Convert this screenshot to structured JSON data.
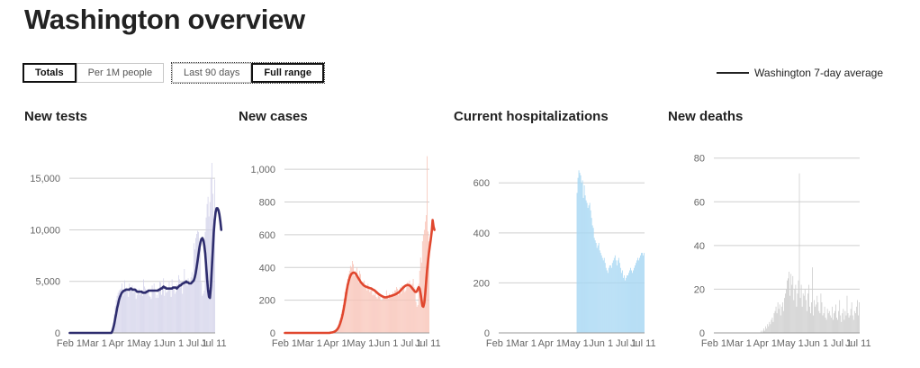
{
  "page_title": "Washington overview",
  "metric_toggle": {
    "options": [
      "Totals",
      "Per 1M people"
    ],
    "selected": "Totals"
  },
  "range_toggle": {
    "options": [
      "Last 90 days",
      "Full range"
    ],
    "selected": "Full range"
  },
  "legend": {
    "label": "Washington 7-day average",
    "color": "#222222"
  },
  "x_tick_labels": [
    "Feb 1",
    "Mar 1",
    "Apr 1",
    "May 1",
    "Jun 1",
    "Jul 1",
    "Jul 11"
  ],
  "chart_data": [
    {
      "type": "bar",
      "title": "New tests",
      "bar_color": "#d4d3ea",
      "line_color": "#2e2d6e",
      "ylim": [
        0,
        16500
      ],
      "yticks": [
        0,
        5000,
        10000,
        15000
      ],
      "ytick_labels": [
        "0",
        "5,000",
        "10,000",
        "15,000"
      ],
      "daily_approx": [
        0,
        0,
        0,
        0,
        0,
        0,
        0,
        0,
        0,
        0,
        0,
        0,
        0,
        0,
        0,
        0,
        0,
        0,
        0,
        0,
        0,
        0,
        0,
        0,
        0,
        0,
        0,
        0,
        0,
        0,
        0,
        0,
        0,
        0,
        0,
        0,
        0,
        0,
        0,
        0,
        0,
        0,
        0,
        0,
        0,
        500,
        1000,
        1800,
        2600,
        3200,
        3600,
        3900,
        4100,
        4200,
        4300,
        4800,
        3600,
        3900,
        5100,
        4200,
        4400,
        4000,
        3500,
        4800,
        4300,
        4200,
        4600,
        3900,
        4400,
        4100,
        3300,
        3700,
        4000,
        4300,
        3700,
        4100,
        3900,
        3600,
        5200,
        4500,
        4300,
        4100,
        3900,
        4200,
        3600,
        3500,
        3300,
        4600,
        4000,
        4800,
        3900,
        3400,
        3700,
        3400,
        4100,
        5000,
        4900,
        3700,
        4500,
        5300,
        3600,
        4500,
        3900,
        4000,
        4300,
        5000,
        4300,
        3500,
        5200,
        4500,
        4400,
        3800,
        4000,
        4700,
        4600,
        5600,
        5200,
        5000,
        4500,
        3800,
        4700,
        6200,
        4800,
        5000,
        4600,
        5300,
        4800,
        4700,
        5400,
        5900,
        5200,
        8700,
        8100,
        9200,
        9600,
        9900,
        9800,
        8400,
        8200,
        4900,
        3600,
        3800,
        4100,
        9800,
        11200,
        12500,
        13200,
        11300,
        12700,
        15000,
        16500,
        13500,
        11100,
        14900
      ],
      "avg_approx": [
        0,
        0,
        0,
        0,
        0,
        0,
        0,
        0,
        0,
        0,
        0,
        0,
        0,
        0,
        0,
        0,
        0,
        0,
        0,
        0,
        0,
        0,
        0,
        0,
        0,
        0,
        0,
        0,
        0,
        0,
        0,
        0,
        0,
        0,
        0,
        0,
        0,
        0,
        0,
        0,
        0,
        0,
        0,
        0,
        0,
        200,
        500,
        900,
        1400,
        1900,
        2400,
        2800,
        3200,
        3500,
        3700,
        3900,
        4000,
        4100,
        4100,
        4200,
        4200,
        4200,
        4200,
        4200,
        4300,
        4300,
        4200,
        4200,
        4200,
        4200,
        4100,
        4000,
        4000,
        4000,
        4000,
        4000,
        4000,
        3900,
        3900,
        3900,
        3900,
        4000,
        4000,
        4100,
        4100,
        4100,
        4100,
        4100,
        4100,
        4100,
        4100,
        4100,
        4100,
        4100,
        4200,
        4200,
        4300,
        4300,
        4400,
        4500,
        4400,
        4400,
        4300,
        4300,
        4300,
        4300,
        4300,
        4300,
        4300,
        4400,
        4400,
        4400,
        4400,
        4300,
        4400,
        4500,
        4600,
        4600,
        4700,
        4800,
        4800,
        4900,
        4900,
        5000,
        4900,
        4900,
        4800,
        4800,
        4800,
        4900,
        5000,
        5100,
        5400,
        5800,
        6400,
        7000,
        7700,
        8300,
        8800,
        9100,
        9200,
        9000,
        8500,
        7700,
        6500,
        5200,
        4200,
        3500,
        3400,
        4500,
        6200,
        8000,
        9700,
        10900,
        11700,
        12100,
        12100,
        11900,
        11500,
        10800,
        10000
      ]
    },
    {
      "type": "bar",
      "title": "New cases",
      "bar_color": "#f8c4b8",
      "line_color": "#e0472e",
      "ylim": [
        0,
        1100
      ],
      "yticks": [
        0,
        200,
        400,
        600,
        800,
        1000
      ],
      "ytick_labels": [
        "0",
        "200",
        "400",
        "600",
        "800",
        "1,000"
      ],
      "daily_approx": [
        0,
        0,
        0,
        0,
        0,
        0,
        0,
        0,
        0,
        0,
        0,
        0,
        0,
        0,
        0,
        0,
        0,
        0,
        0,
        0,
        0,
        0,
        0,
        0,
        0,
        0,
        0,
        0,
        0,
        0,
        0,
        0,
        0,
        0,
        0,
        0,
        0,
        0,
        0,
        0,
        0,
        0,
        0,
        0,
        0,
        0,
        0,
        2,
        0,
        1,
        3,
        5,
        6,
        9,
        14,
        18,
        25,
        35,
        50,
        75,
        90,
        115,
        140,
        170,
        210,
        250,
        270,
        300,
        330,
        360,
        380,
        410,
        400,
        440,
        420,
        350,
        380,
        370,
        400,
        330,
        310,
        380,
        360,
        300,
        300,
        310,
        320,
        290,
        280,
        260,
        300,
        270,
        250,
        260,
        280,
        230,
        240,
        230,
        260,
        220,
        210,
        230,
        240,
        220,
        200,
        200,
        230,
        220,
        220,
        210,
        260,
        230,
        210,
        240,
        230,
        220,
        230,
        250,
        240,
        260,
        260,
        280,
        270,
        230,
        250,
        280,
        240,
        290,
        270,
        280,
        250,
        260,
        300,
        310,
        290,
        320,
        300,
        280,
        300,
        330,
        280,
        270,
        190,
        160,
        170,
        300,
        380,
        460,
        430,
        560,
        600,
        630,
        680,
        720,
        1080,
        620,
        560
      ],
      "avg_approx": [
        0,
        0,
        0,
        0,
        0,
        0,
        0,
        0,
        0,
        0,
        0,
        0,
        0,
        0,
        0,
        0,
        0,
        0,
        0,
        0,
        0,
        0,
        0,
        0,
        0,
        0,
        0,
        0,
        0,
        0,
        0,
        0,
        0,
        0,
        0,
        0,
        0,
        0,
        0,
        0,
        0,
        0,
        0,
        0,
        0,
        0,
        0,
        0,
        0,
        1,
        2,
        3,
        4,
        6,
        9,
        12,
        17,
        24,
        33,
        45,
        60,
        80,
        100,
        125,
        155,
        190,
        225,
        260,
        290,
        315,
        335,
        350,
        360,
        365,
        368,
        368,
        365,
        360,
        350,
        340,
        330,
        320,
        312,
        305,
        298,
        292,
        288,
        285,
        282,
        280,
        278,
        276,
        274,
        272,
        270,
        266,
        263,
        260,
        255,
        250,
        245,
        240,
        236,
        232,
        228,
        225,
        222,
        220,
        218,
        218,
        218,
        219,
        221,
        223,
        225,
        226,
        228,
        230,
        232,
        234,
        237,
        240,
        243,
        247,
        252,
        258,
        264,
        270,
        276,
        281,
        286,
        290,
        292,
        293,
        292,
        290,
        286,
        280,
        272,
        265,
        258,
        252,
        250,
        255,
        270,
        280,
        270,
        240,
        200,
        165,
        160,
        185,
        240,
        310,
        380,
        440,
        490,
        530,
        570,
        620,
        690,
        650,
        630
      ]
    },
    {
      "type": "bar",
      "title": "Current hospitalizations",
      "bar_color": "#a6d7f3",
      "line_color": "#0f4a9b",
      "ylim": [
        0,
        680
      ],
      "yticks": [
        0,
        200,
        400,
        600
      ],
      "ytick_labels": [
        "0",
        "200",
        "400",
        "600"
      ],
      "daily_approx": [
        0,
        0,
        0,
        0,
        0,
        0,
        0,
        0,
        0,
        0,
        0,
        0,
        0,
        0,
        0,
        0,
        0,
        0,
        0,
        0,
        0,
        0,
        0,
        0,
        0,
        0,
        0,
        0,
        0,
        0,
        0,
        0,
        0,
        0,
        0,
        0,
        0,
        0,
        0,
        0,
        0,
        0,
        0,
        0,
        0,
        0,
        0,
        0,
        0,
        0,
        0,
        0,
        0,
        0,
        0,
        0,
        0,
        0,
        0,
        0,
        0,
        0,
        0,
        0,
        0,
        0,
        0,
        0,
        0,
        0,
        0,
        0,
        0,
        0,
        0,
        0,
        0,
        0,
        0,
        0,
        0,
        0,
        0,
        0,
        0,
        0,
        560,
        620,
        650,
        640,
        630,
        600,
        610,
        540,
        590,
        550,
        530,
        520,
        500,
        510,
        520,
        490,
        460,
        430,
        420,
        380,
        370,
        360,
        340,
        350,
        360,
        330,
        320,
        310,
        300,
        290,
        300,
        280,
        260,
        250,
        240,
        260,
        270,
        270,
        260,
        280,
        290,
        300,
        310,
        290,
        270,
        290,
        300,
        280,
        260,
        240,
        250,
        220,
        230,
        210,
        220,
        230,
        230,
        240,
        250,
        260,
        250,
        240,
        250,
        260,
        270,
        280,
        290,
        300,
        290,
        300,
        310,
        320,
        320,
        310,
        320
      ]
    },
    {
      "type": "bar",
      "title": "New deaths",
      "bar_color": "#cccccc",
      "line_color": "#555555",
      "ylim": [
        0,
        84
      ],
      "yticks": [
        0,
        20,
        40,
        60,
        80
      ],
      "ytick_labels": [
        "0",
        "20",
        "40",
        "60",
        "80"
      ],
      "daily_approx": [
        0,
        0,
        0,
        0,
        0,
        0,
        0,
        0,
        0,
        0,
        0,
        0,
        0,
        0,
        0,
        0,
        0,
        0,
        0,
        0,
        0,
        0,
        0,
        0,
        0,
        0,
        0,
        0,
        0,
        0,
        0,
        0,
        0,
        0,
        0,
        0,
        0,
        0,
        0,
        0,
        0,
        0,
        0,
        0,
        0,
        0,
        0,
        0,
        0,
        0,
        1,
        0,
        1,
        2,
        1,
        3,
        2,
        4,
        3,
        5,
        4,
        6,
        7,
        5,
        9,
        10,
        12,
        9,
        14,
        11,
        13,
        8,
        12,
        14,
        10,
        16,
        18,
        20,
        24,
        25,
        28,
        17,
        27,
        22,
        26,
        15,
        20,
        22,
        12,
        18,
        24,
        73,
        16,
        22,
        12,
        18,
        17,
        20,
        15,
        10,
        18,
        22,
        12,
        9,
        14,
        30,
        8,
        15,
        12,
        13,
        17,
        14,
        10,
        9,
        18,
        14,
        8,
        9,
        12,
        7,
        6,
        11,
        9,
        10,
        8,
        7,
        12,
        6,
        9,
        10,
        13,
        7,
        6,
        10,
        15,
        8,
        5,
        9,
        11,
        6,
        10,
        8,
        17,
        9,
        7,
        8,
        11,
        14,
        8,
        6,
        10,
        9,
        12,
        15,
        8,
        14
      ]
    }
  ]
}
